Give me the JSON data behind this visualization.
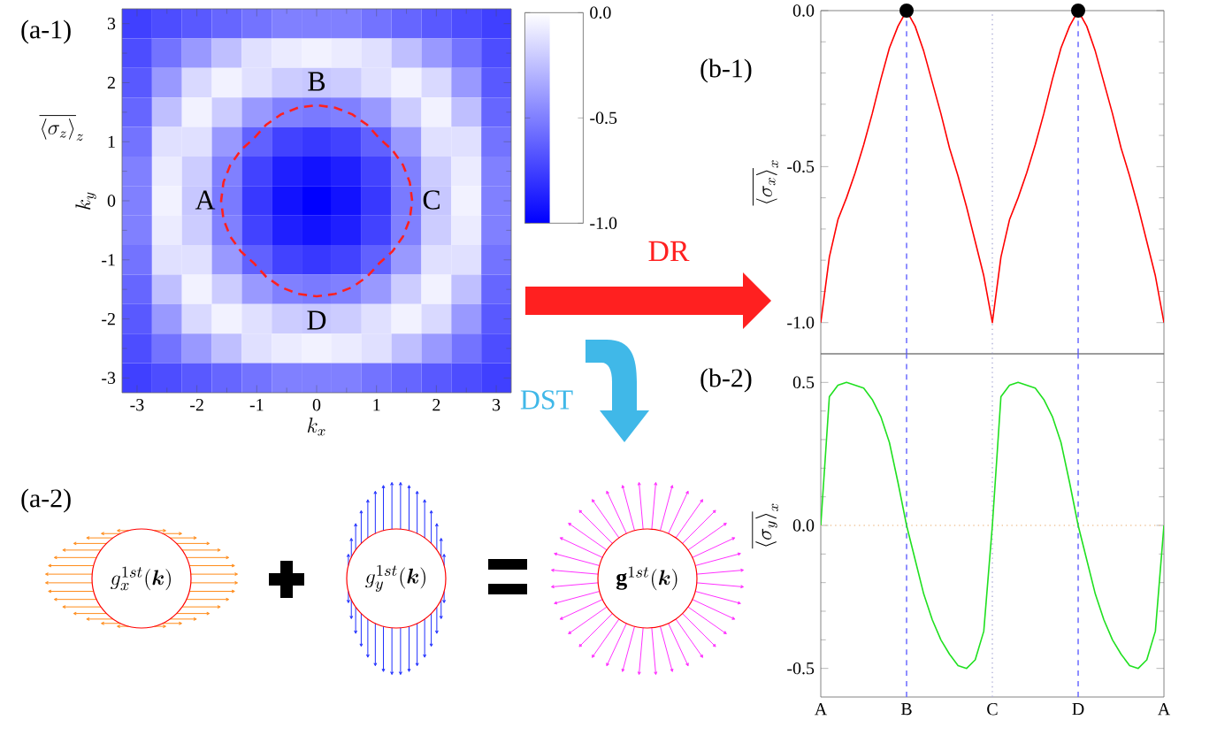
{
  "chart_data": [
    {
      "type": "heatmap",
      "title": "(a-1)",
      "xlabel": "k_x",
      "ylabel": "k_y",
      "clabel": "\\overline{\\langle\\sigma_z\\rangle}_z",
      "categories": [
        "-3",
        null,
        "-2",
        null,
        "-1",
        null,
        "0",
        null,
        "1",
        null,
        "2",
        null,
        "3"
      ],
      "y_categories": [
        "3",
        null,
        "2",
        null,
        "1",
        null,
        "0",
        null,
        "-1",
        null,
        "-2",
        null,
        "-3"
      ],
      "cells": [
        [
          -0.75,
          -0.7,
          -0.65,
          -0.6,
          -0.55,
          -0.5,
          -0.5,
          -0.5,
          -0.55,
          -0.6,
          -0.65,
          -0.7,
          -0.75
        ],
        [
          -0.7,
          -0.55,
          -0.4,
          -0.25,
          -0.12,
          -0.08,
          -0.05,
          -0.08,
          -0.12,
          -0.25,
          -0.4,
          -0.55,
          -0.7
        ],
        [
          -0.65,
          -0.4,
          -0.15,
          -0.05,
          -0.12,
          -0.2,
          -0.22,
          -0.2,
          -0.12,
          -0.05,
          -0.15,
          -0.4,
          -0.65
        ],
        [
          -0.6,
          -0.25,
          -0.05,
          -0.2,
          -0.4,
          -0.5,
          -0.52,
          -0.5,
          -0.4,
          -0.2,
          -0.05,
          -0.25,
          -0.6
        ],
        [
          -0.55,
          -0.12,
          -0.12,
          -0.4,
          -0.62,
          -0.74,
          -0.78,
          -0.74,
          -0.62,
          -0.4,
          -0.12,
          -0.12,
          -0.55
        ],
        [
          -0.5,
          -0.08,
          -0.2,
          -0.5,
          -0.74,
          -0.88,
          -0.93,
          -0.88,
          -0.74,
          -0.5,
          -0.2,
          -0.08,
          -0.5
        ],
        [
          -0.5,
          -0.05,
          -0.22,
          -0.52,
          -0.78,
          -0.93,
          -1.0,
          -0.93,
          -0.78,
          -0.52,
          -0.22,
          -0.05,
          -0.5
        ],
        [
          -0.5,
          -0.08,
          -0.2,
          -0.5,
          -0.74,
          -0.88,
          -0.93,
          -0.88,
          -0.74,
          -0.5,
          -0.2,
          -0.08,
          -0.5
        ],
        [
          -0.55,
          -0.12,
          -0.12,
          -0.4,
          -0.62,
          -0.74,
          -0.78,
          -0.74,
          -0.62,
          -0.4,
          -0.12,
          -0.12,
          -0.55
        ],
        [
          -0.6,
          -0.25,
          -0.05,
          -0.2,
          -0.4,
          -0.5,
          -0.52,
          -0.5,
          -0.4,
          -0.2,
          -0.05,
          -0.25,
          -0.6
        ],
        [
          -0.65,
          -0.4,
          -0.15,
          -0.05,
          -0.12,
          -0.2,
          -0.22,
          -0.2,
          -0.12,
          -0.05,
          -0.15,
          -0.4,
          -0.65
        ],
        [
          -0.7,
          -0.55,
          -0.4,
          -0.25,
          -0.12,
          -0.08,
          -0.05,
          -0.08,
          -0.12,
          -0.25,
          -0.4,
          -0.55,
          -0.7
        ],
        [
          -0.75,
          -0.7,
          -0.65,
          -0.6,
          -0.55,
          -0.5,
          -0.5,
          -0.5,
          -0.55,
          -0.6,
          -0.65,
          -0.7,
          -0.75
        ]
      ],
      "clim": [
        -1,
        0
      ],
      "cticks": [
        {
          "value": 0,
          "label": "0.0"
        },
        {
          "value": -0.5,
          "label": "-0.5"
        },
        {
          "value": -1,
          "label": "-1.0"
        }
      ],
      "annotations": [
        "A",
        "B",
        "C",
        "D",
        "DR",
        "DST"
      ]
    },
    {
      "type": "other",
      "title": "(a-2)",
      "annotations": [
        "g_x^{1st}(\\boldsymbol{k})",
        "g_y^{1st}(\\boldsymbol{k})",
        "\\mathbf{g}^{1st}(\\boldsymbol{k})"
      ]
    },
    {
      "type": "line",
      "title": "(b-1)",
      "ylabel": "\\overline{\\langle\\sigma_x\\rangle}_x",
      "ylim": [
        -1.1,
        0
      ],
      "tick_labels": "y",
      "categories": [
        "A",
        null,
        null,
        null,
        null,
        null,
        null,
        null,
        null,
        null,
        "B",
        null,
        null,
        null,
        null,
        null,
        null,
        null,
        null,
        null,
        "C",
        null,
        null,
        null,
        null,
        null,
        null,
        null,
        null,
        null,
        "D",
        null,
        null,
        null,
        null,
        null,
        null,
        null,
        null,
        null,
        "A"
      ],
      "yticks": [
        {
          "value": 0,
          "label": "0.0"
        },
        {
          "value": -0.5,
          "label": "-0.5"
        },
        {
          "value": -1,
          "label": "-1.0"
        }
      ],
      "series": [
        {
          "color": "#ff0000",
          "values": [
            -1,
            -0.79,
            -0.67,
            -0.6,
            -0.52,
            -0.43,
            -0.33,
            -0.22,
            -0.12,
            -0.05,
            0,
            -0.05,
            -0.13,
            -0.23,
            -0.33,
            -0.44,
            -0.53,
            -0.63,
            -0.74,
            -0.85,
            -1,
            -0.79,
            -0.67,
            -0.6,
            -0.52,
            -0.43,
            -0.33,
            -0.22,
            -0.12,
            -0.05,
            0,
            -0.05,
            -0.13,
            -0.23,
            -0.33,
            -0.44,
            -0.53,
            -0.63,
            -0.74,
            -0.85,
            -1
          ]
        },
        {
          "type": "scatter",
          "color": "#000000",
          "marker": "circle",
          "values": [
            null,
            null,
            null,
            null,
            null,
            null,
            null,
            null,
            null,
            null,
            0,
            null,
            null,
            null,
            null,
            null,
            null,
            null,
            null,
            null,
            null,
            null,
            null,
            null,
            null,
            null,
            null,
            null,
            null,
            null,
            0,
            null,
            null,
            null,
            null,
            null,
            null,
            null,
            null,
            null,
            null
          ]
        }
      ],
      "ref_lines": [
        {
          "axis": "x",
          "value": "B",
          "color": "#6060ff",
          "line_style": "dashed"
        },
        {
          "axis": "x",
          "value": "D",
          "color": "#6060ff",
          "line_style": "dashed"
        },
        {
          "axis": "x",
          "value": "C",
          "color": "#b0b0d8",
          "line_style": "dotted"
        }
      ]
    },
    {
      "type": "line",
      "title": "(b-2)",
      "ylabel": "\\overline{\\langle\\sigma_y\\rangle}_x",
      "ylim": [
        -0.6,
        0.6
      ],
      "categories": [
        "A",
        null,
        null,
        null,
        null,
        null,
        null,
        null,
        null,
        null,
        "B",
        null,
        null,
        null,
        null,
        null,
        null,
        null,
        null,
        null,
        "C",
        null,
        null,
        null,
        null,
        null,
        null,
        null,
        null,
        null,
        "D",
        null,
        null,
        null,
        null,
        null,
        null,
        null,
        null,
        null,
        "A"
      ],
      "yticks": [
        {
          "value": -0.5,
          "label": "-0.5"
        },
        {
          "value": 0,
          "label": "0.0"
        },
        {
          "value": 0.5,
          "label": "0.5"
        }
      ],
      "series": [
        {
          "color": "#20e020",
          "values": [
            0,
            0.45,
            0.49,
            0.5,
            0.49,
            0.48,
            0.44,
            0.38,
            0.29,
            0.15,
            0,
            -0.12,
            -0.24,
            -0.33,
            -0.4,
            -0.45,
            -0.49,
            -0.5,
            -0.47,
            -0.37,
            0,
            0.45,
            0.49,
            0.5,
            0.49,
            0.48,
            0.44,
            0.38,
            0.29,
            0.15,
            0,
            -0.12,
            -0.24,
            -0.33,
            -0.4,
            -0.45,
            -0.49,
            -0.5,
            -0.47,
            -0.37,
            0
          ]
        }
      ],
      "ref_lines": [
        {
          "axis": "x",
          "value": "B",
          "color": "#6060ff",
          "line_style": "dashed"
        },
        {
          "axis": "x",
          "value": "D",
          "color": "#6060ff",
          "line_style": "dashed"
        },
        {
          "axis": "x",
          "value": "C",
          "color": "#b0b0d8",
          "line_style": "dotted"
        },
        {
          "axis": "y",
          "value": 0,
          "color": "#f0c8a0",
          "line_style": "dotted"
        }
      ]
    }
  ]
}
